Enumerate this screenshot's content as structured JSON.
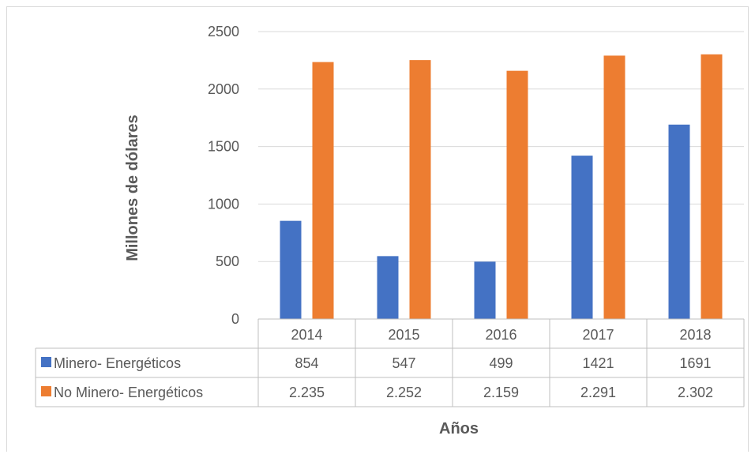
{
  "chart_data": {
    "type": "bar",
    "categories": [
      "2014",
      "2015",
      "2016",
      "2017",
      "2018"
    ],
    "series": [
      {
        "name": "Minero- Energéticos",
        "values": [
          854,
          547,
          499,
          1421,
          1691
        ],
        "labels": [
          "854",
          "547",
          "499",
          "1421",
          "1691"
        ],
        "color": "#4472c4"
      },
      {
        "name": "No Minero- Energéticos",
        "values": [
          2235,
          2252,
          2159,
          2291,
          2302
        ],
        "labels": [
          "2.235",
          "2.252",
          "2.159",
          "2.291",
          "2.302"
        ],
        "color": "#ed7d31"
      }
    ],
    "ylim": [
      0,
      2500
    ],
    "yticks": [
      "0",
      "500",
      "1000",
      "1500",
      "2000",
      "2500"
    ],
    "xlabel": "Años",
    "ylabel": "Millones de dólares",
    "grid": true,
    "legend": "data-table"
  }
}
